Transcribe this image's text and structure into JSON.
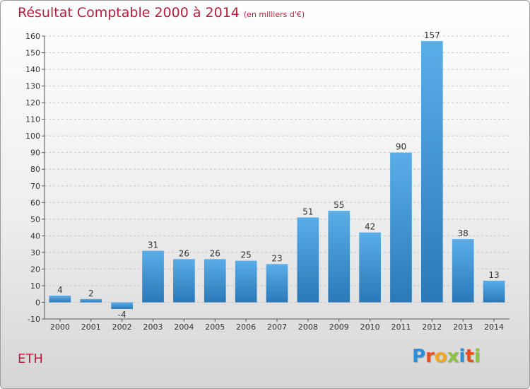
{
  "header": {
    "title": "Résultat Comptable 2000 à 2014",
    "subtitle": "(en milliers d'€)"
  },
  "footer": {
    "commune": "ETH",
    "logo": "Proxiti"
  },
  "colors": {
    "title": "#b5203c",
    "bar_top": "#5aaee8",
    "bar_bottom": "#2a78b8",
    "grid": "#c8c8c8"
  },
  "chart_data": {
    "type": "bar",
    "title": "Résultat Comptable 2000 à 2014",
    "subtitle": "(en milliers d'€)",
    "xlabel": "",
    "ylabel": "",
    "categories": [
      "2000",
      "2001",
      "2002",
      "2003",
      "2004",
      "2005",
      "2006",
      "2007",
      "2008",
      "2009",
      "2010",
      "2011",
      "2012",
      "2013",
      "2014"
    ],
    "values": [
      4,
      2,
      -4,
      31,
      26,
      26,
      25,
      23,
      51,
      55,
      42,
      90,
      157,
      38,
      13
    ],
    "ylim": [
      -10,
      160
    ],
    "ytick_step": 10,
    "grid": "horizontal dashed",
    "legend": "none"
  }
}
